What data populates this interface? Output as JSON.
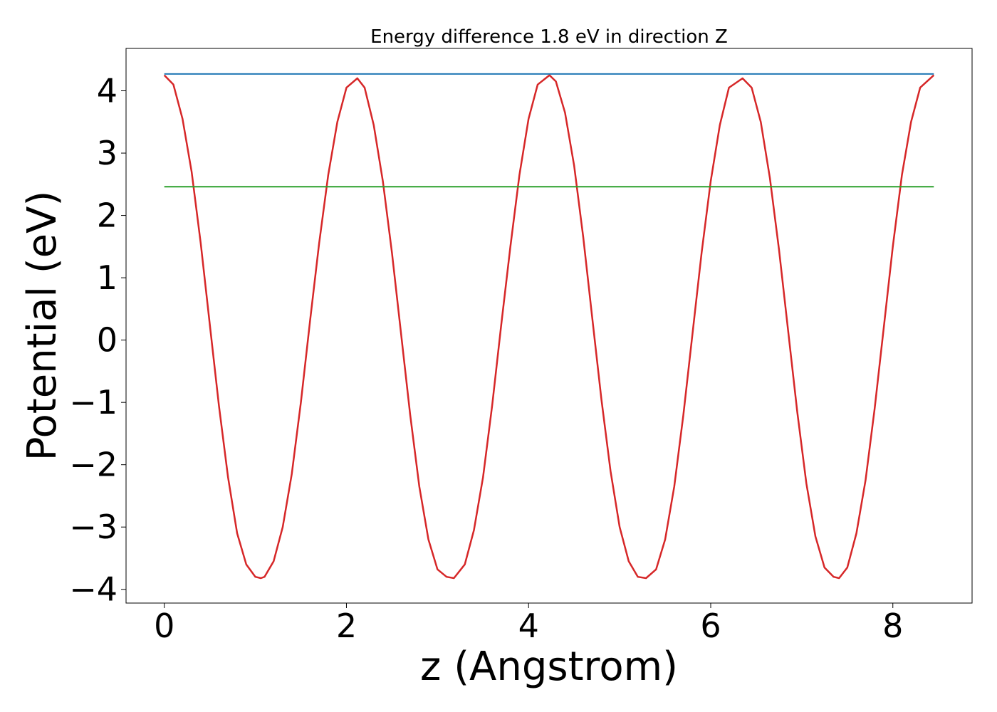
{
  "chart_data": {
    "type": "line",
    "title": "Energy difference 1.8 eV in direction Z",
    "xlabel": "z (Angstrom)",
    "ylabel": "Potential (eV)",
    "xlim": [
      -0.42,
      8.87
    ],
    "ylim": [
      -4.22,
      4.68
    ],
    "xticks": [
      0,
      2,
      4,
      6,
      8
    ],
    "yticks": [
      -4,
      -3,
      -2,
      -1,
      0,
      1,
      2,
      3,
      4
    ],
    "grid": false,
    "legend": "none",
    "series": [
      {
        "color": "#d62728",
        "x": [
          0,
          0.1,
          0.2,
          0.3,
          0.4,
          0.5,
          0.6,
          0.7,
          0.8,
          0.9,
          1.0,
          1.06,
          1.1,
          1.2,
          1.3,
          1.4,
          1.5,
          1.6,
          1.7,
          1.8,
          1.9,
          2.0,
          2.12,
          2.2,
          2.3,
          2.4,
          2.5,
          2.6,
          2.7,
          2.8,
          2.9,
          3.0,
          3.1,
          3.18,
          3.3,
          3.4,
          3.5,
          3.6,
          3.7,
          3.8,
          3.9,
          4.0,
          4.1,
          4.23,
          4.3,
          4.4,
          4.5,
          4.6,
          4.7,
          4.8,
          4.9,
          5.0,
          5.1,
          5.2,
          5.29,
          5.4,
          5.5,
          5.6,
          5.7,
          5.8,
          5.9,
          6.0,
          6.1,
          6.2,
          6.35,
          6.45,
          6.55,
          6.65,
          6.75,
          6.85,
          6.95,
          7.05,
          7.15,
          7.25,
          7.35,
          7.41,
          7.5,
          7.6,
          7.7,
          7.8,
          7.9,
          8.0,
          8.1,
          8.2,
          8.3,
          8.45
        ],
        "y": [
          4.25,
          4.1,
          3.55,
          2.7,
          1.55,
          0.25,
          -1.05,
          -2.2,
          -3.1,
          -3.6,
          -3.8,
          -3.82,
          -3.8,
          -3.55,
          -3.0,
          -2.15,
          -1.0,
          0.3,
          1.55,
          2.65,
          3.5,
          4.05,
          4.2,
          4.05,
          3.45,
          2.55,
          1.4,
          0.1,
          -1.2,
          -2.35,
          -3.2,
          -3.68,
          -3.8,
          -3.82,
          -3.6,
          -3.05,
          -2.2,
          -1.05,
          0.25,
          1.5,
          2.65,
          3.55,
          4.1,
          4.25,
          4.15,
          3.65,
          2.8,
          1.65,
          0.35,
          -0.95,
          -2.1,
          -3.0,
          -3.55,
          -3.8,
          -3.82,
          -3.68,
          -3.2,
          -2.35,
          -1.2,
          0.1,
          1.4,
          2.55,
          3.45,
          4.05,
          4.2,
          4.05,
          3.5,
          2.6,
          1.45,
          0.15,
          -1.15,
          -2.3,
          -3.15,
          -3.65,
          -3.8,
          -3.82,
          -3.65,
          -3.1,
          -2.25,
          -1.1,
          0.2,
          1.5,
          2.65,
          3.5,
          4.05,
          4.25
        ]
      },
      {
        "color": "#1f77b4",
        "x": [
          0,
          8.45
        ],
        "y": [
          4.27,
          4.27
        ]
      },
      {
        "color": "#2ca02c",
        "x": [
          0,
          8.45
        ],
        "y": [
          2.46,
          2.46
        ]
      }
    ]
  }
}
